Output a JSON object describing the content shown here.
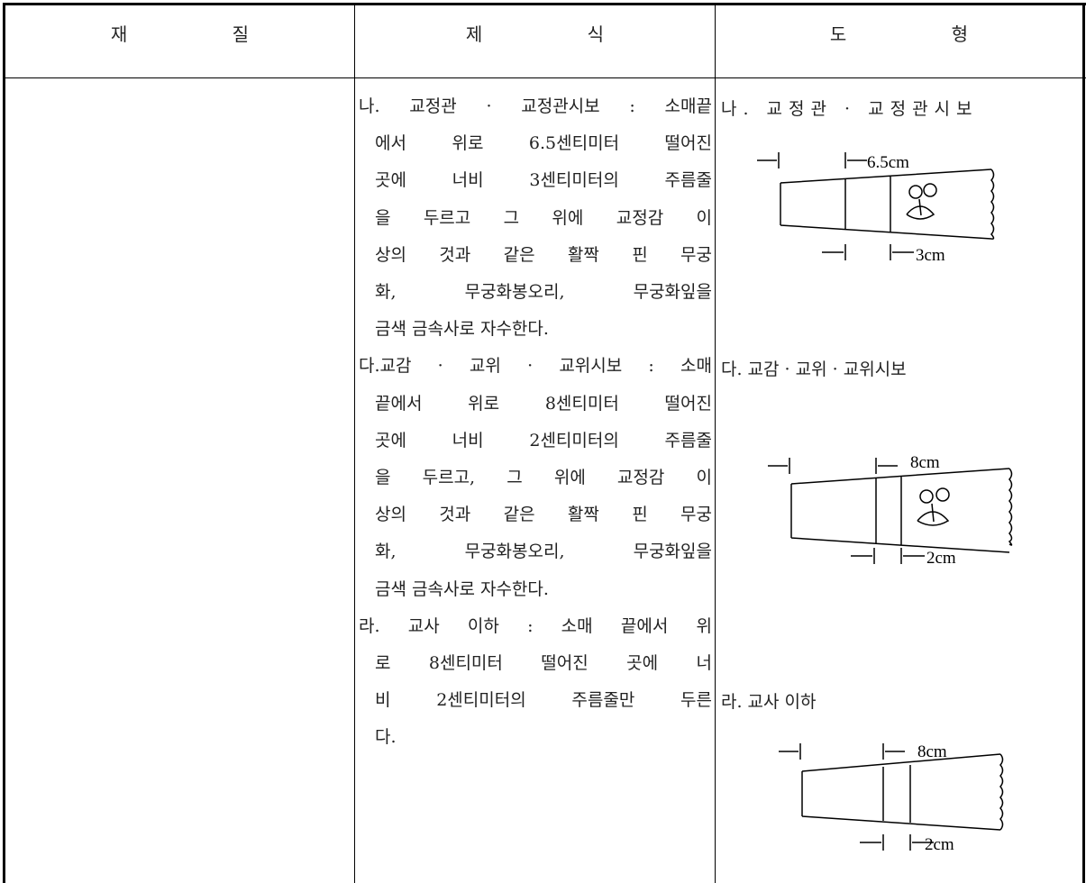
{
  "header": {
    "columns": [
      "재 질",
      "제 식",
      "도 형"
    ]
  },
  "spec": {
    "items": [
      {
        "lines": [
          "나. 교정관 · 교정관시보 : 소매끝",
          "에서 위로 6.5센티미터 떨어진",
          "곳에 너비 3센티미터의 주름줄",
          "을 두르고 그 위에 교정감 이",
          "상의 것과 같은 활짝 핀 무궁",
          "화, 무궁화봉오리, 무궁화잎을",
          "금색 금속사로 자수한다."
        ]
      },
      {
        "lines": [
          "다.교감 · 교위 · 교위시보 : 소매",
          "끝에서 위로 8센티미터 떨어진",
          "곳에 너비 2센티미터의 주름줄",
          "을 두르고, 그 위에 교정감 이",
          "상의 것과 같은 활짝 핀 무궁",
          "화, 무궁화봉오리, 무궁화잎을",
          "금색 금속사로 자수한다."
        ]
      },
      {
        "lines": [
          "라. 교사 이하 : 소매 끝에서 위",
          "로 8센티미터 떨어진 곳에 너",
          "비 2센티미터의 주름줄만 두른",
          "다."
        ]
      }
    ]
  },
  "figures": [
    {
      "title": "나. 교정관 · 교정관시보",
      "upper": "6.5cm",
      "lower": "3cm"
    },
    {
      "title": "다. 교감 · 교위 · 교위시보",
      "upper": "8cm",
      "lower": "2cm"
    },
    {
      "title": "라. 교사 이하",
      "upper": "8cm",
      "lower": "2cm"
    }
  ]
}
